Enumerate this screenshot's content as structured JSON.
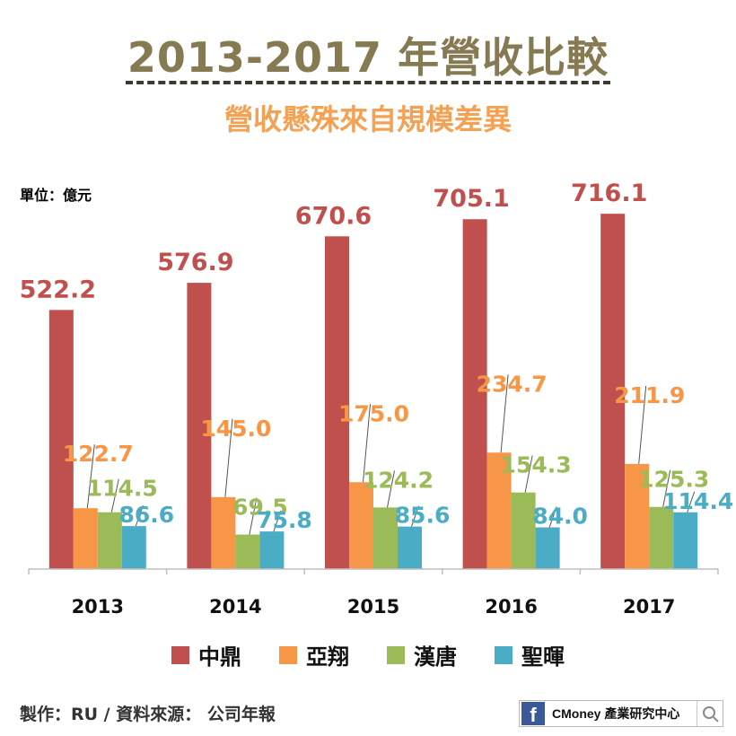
{
  "title": "2013-2017 年營收比較",
  "subtitle": "營收懸殊來自規模差異",
  "unit_label": "單位：億元",
  "footer": "製作：RU  / 資料來源： 公司年報",
  "brand": {
    "fb_glyph": "f",
    "text": "CMoney 產業研究中心",
    "search_icon": "search-icon"
  },
  "colors": {
    "中鼎": "#c0504d",
    "亞翔": "#f79646",
    "漢唐": "#9bbb59",
    "聖暉": "#4bacc6",
    "axis": "#bfbfbf"
  },
  "chart_data": {
    "type": "bar",
    "title": "2013-2017 年營收比較",
    "subtitle": "營收懸殊來自規模差異",
    "ylabel": "單位：億元",
    "categories": [
      "2013",
      "2014",
      "2015",
      "2016",
      "2017"
    ],
    "series": [
      {
        "name": "中鼎",
        "values": [
          522.2,
          576.9,
          670.6,
          705.1,
          716.1
        ]
      },
      {
        "name": "亞翔",
        "values": [
          122.7,
          145.0,
          175.0,
          234.7,
          211.9
        ]
      },
      {
        "name": "漢唐",
        "values": [
          114.5,
          69.5,
          124.2,
          154.3,
          125.3
        ]
      },
      {
        "name": "聖暉",
        "values": [
          86.6,
          75.8,
          85.6,
          84.0,
          114.4
        ]
      }
    ],
    "ylim": [
      0,
      720
    ],
    "data_labels": true,
    "grid": false,
    "legend_position": "bottom"
  }
}
